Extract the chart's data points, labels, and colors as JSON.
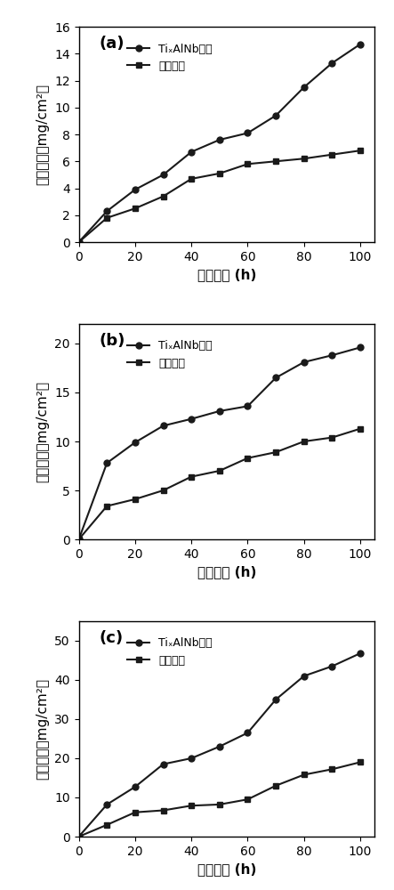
{
  "panels": [
    {
      "label": "(a)",
      "ylim": [
        0,
        16
      ],
      "yticks": [
        0,
        2,
        4,
        6,
        8,
        10,
        12,
        14,
        16
      ],
      "substrate_x": [
        0,
        10,
        20,
        30,
        40,
        50,
        60,
        70,
        80,
        90,
        100
      ],
      "substrate_y": [
        0,
        2.3,
        3.9,
        5.0,
        6.7,
        7.6,
        8.1,
        9.4,
        11.5,
        13.3,
        14.7
      ],
      "coating_x": [
        0,
        10,
        20,
        30,
        40,
        50,
        60,
        70,
        80,
        90,
        100
      ],
      "coating_y": [
        0,
        1.8,
        2.5,
        3.4,
        4.7,
        5.1,
        5.8,
        6.0,
        6.2,
        6.5,
        6.8
      ]
    },
    {
      "label": "(b)",
      "ylim": [
        0,
        22
      ],
      "yticks": [
        0,
        5,
        10,
        15,
        20
      ],
      "substrate_x": [
        0,
        10,
        20,
        30,
        40,
        50,
        60,
        70,
        80,
        90,
        100
      ],
      "substrate_y": [
        0,
        7.8,
        9.9,
        11.6,
        12.3,
        13.1,
        13.6,
        16.5,
        18.1,
        18.8,
        19.6
      ],
      "coating_x": [
        0,
        10,
        20,
        30,
        40,
        50,
        60,
        70,
        80,
        90,
        100
      ],
      "coating_y": [
        0,
        3.4,
        4.1,
        5.0,
        6.4,
        7.0,
        8.3,
        8.9,
        10.0,
        10.4,
        11.3
      ]
    },
    {
      "label": "(c)",
      "ylim": [
        0,
        55
      ],
      "yticks": [
        0,
        10,
        20,
        30,
        40,
        50
      ],
      "substrate_x": [
        0,
        10,
        20,
        30,
        40,
        50,
        60,
        70,
        80,
        90,
        100
      ],
      "substrate_y": [
        0,
        8.2,
        12.7,
        18.5,
        20.0,
        23.0,
        26.5,
        35.0,
        41.0,
        43.5,
        46.8
      ],
      "coating_x": [
        0,
        10,
        20,
        30,
        40,
        50,
        60,
        70,
        80,
        90,
        100
      ],
      "coating_y": [
        0,
        3.0,
        6.2,
        6.7,
        7.9,
        8.2,
        9.5,
        13.0,
        15.8,
        17.2,
        19.0
      ]
    }
  ],
  "xlabel": "氧化时间 (h)",
  "ylabel": "氧化増重（mg/cm²）",
  "legend_substrate": "TiₓAlNb基体",
  "legend_coating": "复合涂层",
  "xlim": [
    0,
    105
  ],
  "xticks": [
    0,
    20,
    40,
    60,
    80,
    100
  ],
  "line_color": "#1a1a1a",
  "marker_circle": "o",
  "marker_square": "s",
  "marker_size": 5,
  "line_width": 1.5,
  "font_size_label": 11,
  "font_size_tick": 10,
  "font_size_legend": 9,
  "font_size_panel_label": 13,
  "background_color": "#ffffff"
}
